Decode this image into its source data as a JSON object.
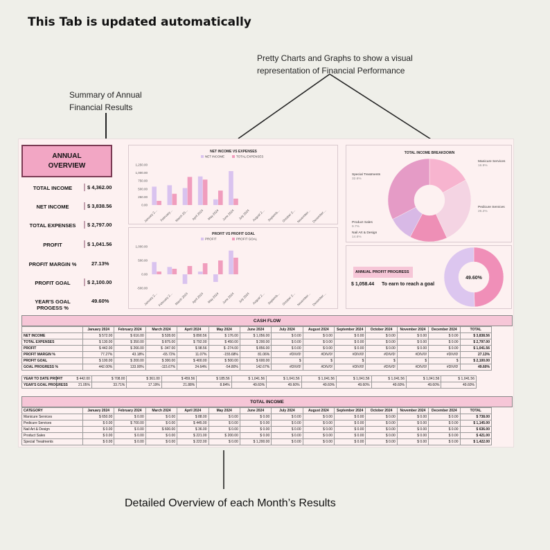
{
  "header": "This Tab is updated automatically",
  "annotations": {
    "summary": "Summary of Annual\nFinancial Results",
    "charts": "Pretty Charts and Graphs to show a visual\nrepresentation of Financial Performance",
    "detail": "Detailed Overview of each Month’s Results"
  },
  "overview": {
    "title": "ANNUAL\nOVERVIEW",
    "kpis": [
      {
        "label": "TOTAL INCOME",
        "value": "$  4,362.00"
      },
      {
        "label": "NET INCOME",
        "value": "$  3,838.56"
      },
      {
        "label": "TOTAL EXPENSES",
        "value": "$  2,797.00"
      },
      {
        "label": "PROFIT",
        "value": "$  1,041.56"
      },
      {
        "label": "PROFIT MARGIN  %",
        "value": "27.13%"
      },
      {
        "label": "PROFIT GOAL",
        "value": "$  2,100.00"
      },
      {
        "label": "YEAR'S GOAL PROGESS %",
        "value": "49.60%"
      }
    ]
  },
  "chart_data": [
    {
      "type": "bar",
      "title": "NET INCOME VS EXPENSES",
      "categories": [
        "January 2…",
        "February…",
        "March 20…",
        "April 2024",
        "May 2024",
        "June 2024",
        "July 2024",
        "August 2…",
        "Septemb…",
        "October 2…",
        "November…",
        "December…"
      ],
      "series": [
        {
          "name": "NET INCOME",
          "values": [
            572,
            616,
            528,
            890.56,
            176,
            1056,
            0,
            0,
            0,
            0,
            0,
            0
          ],
          "color": "#d9c3ef"
        },
        {
          "name": "TOTAL EXPENSES",
          "values": [
            130,
            350,
            875,
            792,
            450,
            200,
            0,
            0,
            0,
            0,
            0,
            0
          ],
          "color": "#f09dbd"
        }
      ],
      "yticks": [
        "1,250.00",
        "1,000.00",
        "750.00",
        "500.00",
        "250.00",
        "0.00"
      ],
      "ylim": [
        0,
        1250
      ]
    },
    {
      "type": "bar",
      "title": "PROFIT VS PROFIT GOAL",
      "categories": [
        "January 2…",
        "February 2…",
        "March 2024",
        "April 2024",
        "May 2024",
        "June 2024",
        "July 2024",
        "August 2…",
        "Septemb…",
        "October 2…",
        "November…",
        "December…"
      ],
      "series": [
        {
          "name": "PROFIT",
          "values": [
            442,
            266,
            -347,
            98.56,
            -274,
            856,
            0,
            0,
            0,
            0,
            0,
            0
          ],
          "color": "#d9c3ef"
        },
        {
          "name": "PROFIT GOAL",
          "values": [
            100,
            200,
            300,
            400,
            500,
            600,
            0,
            0,
            0,
            0,
            0,
            0
          ],
          "color": "#f09dbd"
        }
      ],
      "yticks": [
        "1,000.00",
        "500.00",
        "0.00",
        "-500.00"
      ],
      "ylim": [
        -500,
        1000
      ]
    },
    {
      "type": "pie",
      "title": "TOTAL INCOME BREAKDOWN",
      "slices": [
        {
          "name": "Manicure Services",
          "value": 16.9,
          "pct": "16.9%",
          "color": "#f7b4cf"
        },
        {
          "name": "Pedicure Services",
          "value": 26.2,
          "pct": "26.2%",
          "color": "#f4d4e3"
        },
        {
          "name": "Nail Art & Design",
          "value": 14.6,
          "pct": "14.6%",
          "color": "#ee8fb6"
        },
        {
          "name": "Product Sales",
          "value": 9.7,
          "pct": "9.7%",
          "color": "#d8b9e6"
        },
        {
          "name": "Special Treatments",
          "value": 32.6,
          "pct": "32.6%",
          "color": "#e59bc6"
        }
      ]
    },
    {
      "type": "pie",
      "title": "ANNUAL PROFIT PROGRESS",
      "value_label": "49.60%",
      "slices": [
        {
          "value": 49.6,
          "color": "#f08fb8"
        },
        {
          "value": 50.4,
          "color": "#dcc6ef"
        }
      ]
    }
  ],
  "progress": {
    "title": "ANNUAL PROFIT PROGRESS",
    "amount": "$  1,058.44",
    "text": "To earn to reach a goal"
  },
  "cashflow": {
    "title": "CASH FLOW",
    "months": [
      "January 2024",
      "February 2024",
      "March 2024",
      "April 2024",
      "May 2024",
      "June 2024",
      "July 2024",
      "August 2024",
      "September 2024",
      "October 2024",
      "November 2024",
      "December 2024",
      "TOTAL"
    ],
    "rows": [
      {
        "label": "NET INCOME",
        "cells": [
          "$ 572.00",
          "$ 616.00",
          "$ 528.00",
          "$ 890.56",
          "$ 176.00",
          "$ 1,056.00",
          "$ 0.00",
          "$ 0.00",
          "$ 0.00",
          "$ 0.00",
          "$ 0.00",
          "$ 0.00",
          "$ 3,838.56"
        ]
      },
      {
        "label": "TOTAL EXPENSES",
        "cells": [
          "$ 130.00",
          "$ 350.00",
          "$ 875.00",
          "$ 792.00",
          "$ 450.00",
          "$ 200.00",
          "$ 0.00",
          "$ 0.00",
          "$ 0.00",
          "$ 0.00",
          "$ 0.00",
          "$ 0.00",
          "$ 2,797.00"
        ]
      },
      {
        "label": "PROFIT",
        "cells": [
          "$ 442.00",
          "$ 266.00",
          "$ -347.00",
          "$ 98.56",
          "$ -274.00",
          "$ 856.00",
          "$ 0.00",
          "$ 0.00",
          "$ 0.00",
          "$ 0.00",
          "$ 0.00",
          "$ 0.00",
          "$ 1,041.56"
        ]
      },
      {
        "label": "PROFIT MARGIN %",
        "cells": [
          "77.27%",
          "43.18%",
          "-65.72%",
          "11.07%",
          "-155.68%",
          "81.06%",
          "#DIV/0!",
          "#DIV/0!",
          "#DIV/0!",
          "#DIV/0!",
          "#DIV/0!",
          "#DIV/0!",
          "27.13%"
        ]
      },
      {
        "label": "PROFIT GOAL",
        "cells": [
          "$ 100.00",
          "$ 200.00",
          "$ 300.00",
          "$ 400.00",
          "$ 500.00",
          "$ 600.00",
          "$",
          "$",
          "$",
          "$",
          "$",
          "$",
          "$ 2,100.00"
        ]
      },
      {
        "label": "GOAL PROGRESS %",
        "cells": [
          "442.00%",
          "133.00%",
          "-115.67%",
          "24.64%",
          "-54.80%",
          "142.67%",
          "#DIV/0!",
          "#DIV/0!",
          "#DIV/0!",
          "#DIV/0!",
          "#DIV/0!",
          "#DIV/0!",
          "49.60%"
        ]
      }
    ],
    "ytd": [
      {
        "label": "YEAR TO DATE PROFIT",
        "cells": [
          "$ 442.00",
          "$ 708.00",
          "$ 361.00",
          "$ 459.56",
          "$ 185.56",
          "$ 1,041.56",
          "$ 1,041.56",
          "$ 1,041.56",
          "$ 1,041.56",
          "$ 1,041.56",
          "$ 1,041.56",
          "$ 1,041.56"
        ]
      },
      {
        "label": "YEAR'S GOAL PROGRESS",
        "cells": [
          "21.05%",
          "33.71%",
          "17.19%",
          "21.88%",
          "8.84%",
          "49.60%",
          "49.60%",
          "49.60%",
          "49.60%",
          "49.60%",
          "49.60%",
          "49.60%"
        ]
      }
    ]
  },
  "income": {
    "title": "TOTAL INCOME",
    "category_header": "CATEGORY",
    "rows": [
      {
        "label": "Manicure Services",
        "cells": [
          "$ 650.00",
          "$ 0.00",
          "$ 0.00",
          "$ 88.00",
          "$ 0.00",
          "$ 0.00",
          "$ 0.00",
          "$ 0.00",
          "$ 0.00",
          "$ 0.00",
          "$ 0.00",
          "$ 0.00",
          "$ 738.00"
        ]
      },
      {
        "label": "Pedicure Services",
        "cells": [
          "$ 0.00",
          "$ 700.00",
          "$ 0.00",
          "$ 445.00",
          "$ 0.00",
          "$ 0.00",
          "$ 0.00",
          "$ 0.00",
          "$ 0.00",
          "$ 0.00",
          "$ 0.00",
          "$ 0.00",
          "$ 1,145.00"
        ]
      },
      {
        "label": "Nail Art & Design",
        "cells": [
          "$ 0.00",
          "$ 0.00",
          "$ 600.00",
          "$ 36.00",
          "$ 0.00",
          "$ 0.00",
          "$ 0.00",
          "$ 0.00",
          "$ 0.00",
          "$ 0.00",
          "$ 0.00",
          "$ 0.00",
          "$ 636.00"
        ]
      },
      {
        "label": "Product Sales",
        "cells": [
          "$ 0.00",
          "$ 0.00",
          "$ 0.00",
          "$ 221.00",
          "$ 200.00",
          "$ 0.00",
          "$ 0.00",
          "$ 0.00",
          "$ 0.00",
          "$ 0.00",
          "$ 0.00",
          "$ 0.00",
          "$ 421.00"
        ]
      },
      {
        "label": "Special Treatments",
        "cells": [
          "$ 0.00",
          "$ 0.00",
          "$ 0.00",
          "$ 222.00",
          "$ 0.00",
          "$ 1,200.00",
          "$ 0.00",
          "$ 0.00",
          "$ 0.00",
          "$ 0.00",
          "$ 0.00",
          "$ 0.00",
          "$ 1,422.00"
        ]
      }
    ]
  }
}
